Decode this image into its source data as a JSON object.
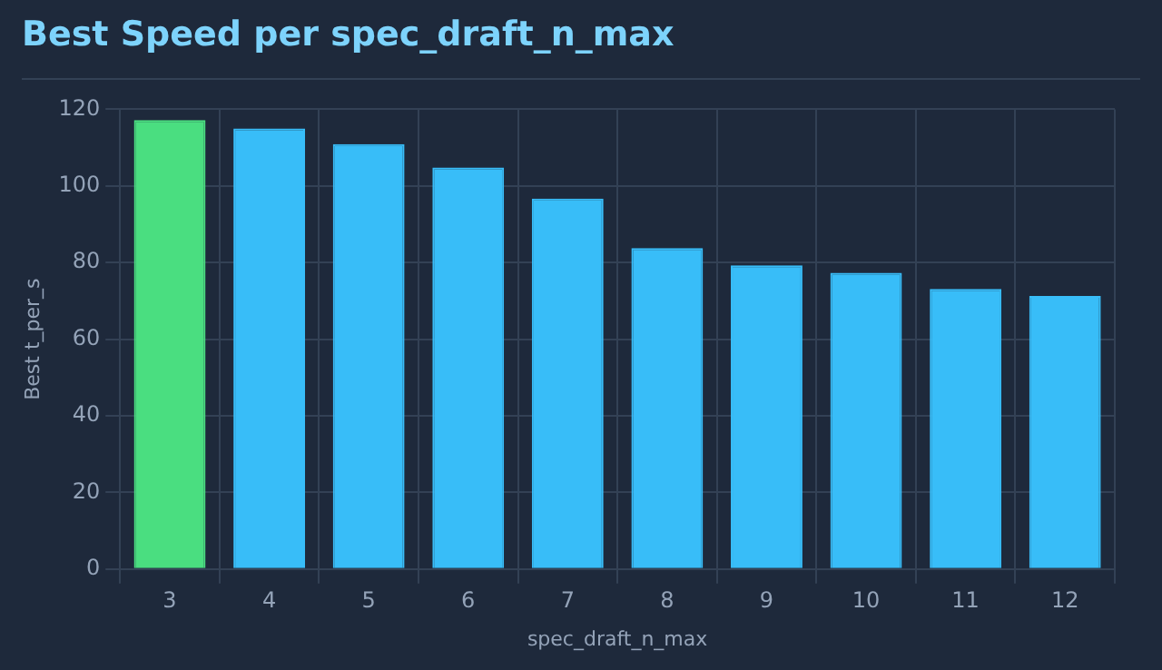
{
  "chart_data": {
    "type": "bar",
    "title": "Best Speed per spec_draft_n_max",
    "xlabel": "spec_draft_n_max",
    "ylabel": "Best t_per_s",
    "categories": [
      "3",
      "4",
      "5",
      "6",
      "7",
      "8",
      "9",
      "10",
      "11",
      "12"
    ],
    "values": [
      117.2,
      115.0,
      110.9,
      104.8,
      96.7,
      83.8,
      79.3,
      77.3,
      73.1,
      71.3
    ],
    "colors": [
      "#4ade80",
      "#38bdf8",
      "#38bdf8",
      "#38bdf8",
      "#38bdf8",
      "#38bdf8",
      "#38bdf8",
      "#38bdf8",
      "#38bdf8",
      "#38bdf8"
    ],
    "ylim": [
      0,
      120
    ],
    "yticks": [
      0,
      20,
      40,
      60,
      80,
      100,
      120
    ],
    "grid": true
  }
}
